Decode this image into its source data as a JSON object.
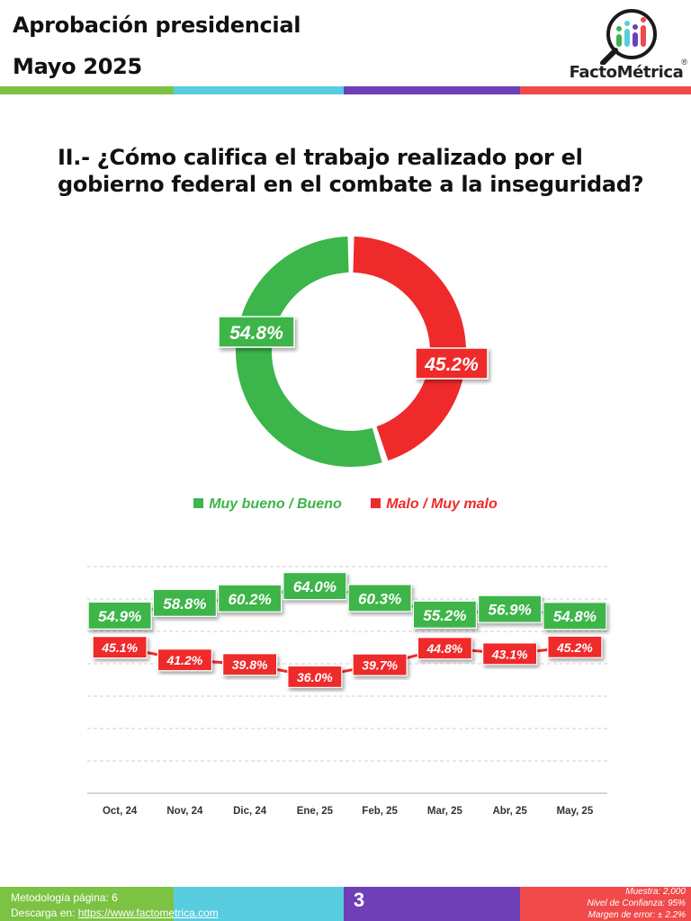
{
  "header": {
    "title_line1": "Aprobación presidencial",
    "title_line2": "Mayo 2025",
    "logo_text": "FactoMétrica",
    "logo_registered": "®"
  },
  "colors": {
    "green": "#3cb54a",
    "red": "#ee2a2a",
    "bar_green": "#7cc343",
    "bar_cyan": "#58cde0",
    "bar_purple": "#6e3fb7",
    "bar_red": "#f04a4a"
  },
  "question": "II.- ¿Cómo califica el trabajo realizado por el gobierno federal en el combate a la inseguridad?",
  "chart_data": [
    {
      "type": "pie",
      "labels": [
        "Muy bueno / Bueno",
        "Malo / Muy malo"
      ],
      "values": [
        54.8,
        45.2
      ],
      "value_labels": [
        "54.8%",
        "45.2%"
      ]
    },
    {
      "type": "line",
      "categories": [
        "Oct, 24",
        "Nov, 24",
        "Dic, 24",
        "Ene, 25",
        "Feb, 25",
        "Mar, 25",
        "Abr, 25",
        "May, 25"
      ],
      "series": [
        {
          "name": "Muy bueno / Bueno",
          "values": [
            54.9,
            58.8,
            60.2,
            64.0,
            60.3,
            55.2,
            56.9,
            54.8
          ],
          "labels": [
            "54.9%",
            "58.8%",
            "60.2%",
            "64.0%",
            "60.3%",
            "55.2%",
            "56.9%",
            "54.8%"
          ]
        },
        {
          "name": "Malo / Muy malo",
          "values": [
            45.1,
            41.2,
            39.8,
            36.0,
            39.7,
            44.8,
            43.1,
            45.2
          ],
          "labels": [
            "45.1%",
            "41.2%",
            "39.8%",
            "36.0%",
            "39.7%",
            "44.8%",
            "43.1%",
            "45.2%"
          ]
        }
      ],
      "legend": [
        "Muy bueno / Bueno",
        "Malo / Muy malo"
      ],
      "legend_position": "top",
      "grid": true
    }
  ],
  "footer": {
    "methodology": "Metodología página: 6",
    "download_prefix": "Descarga en: ",
    "download_link": "https://www.factometrica.com",
    "page_number": "3",
    "sample": "Muestra:  2,000",
    "confidence": "Nivel de Confianza: 95%",
    "margin": "Margen de error: ± 2.2%"
  }
}
